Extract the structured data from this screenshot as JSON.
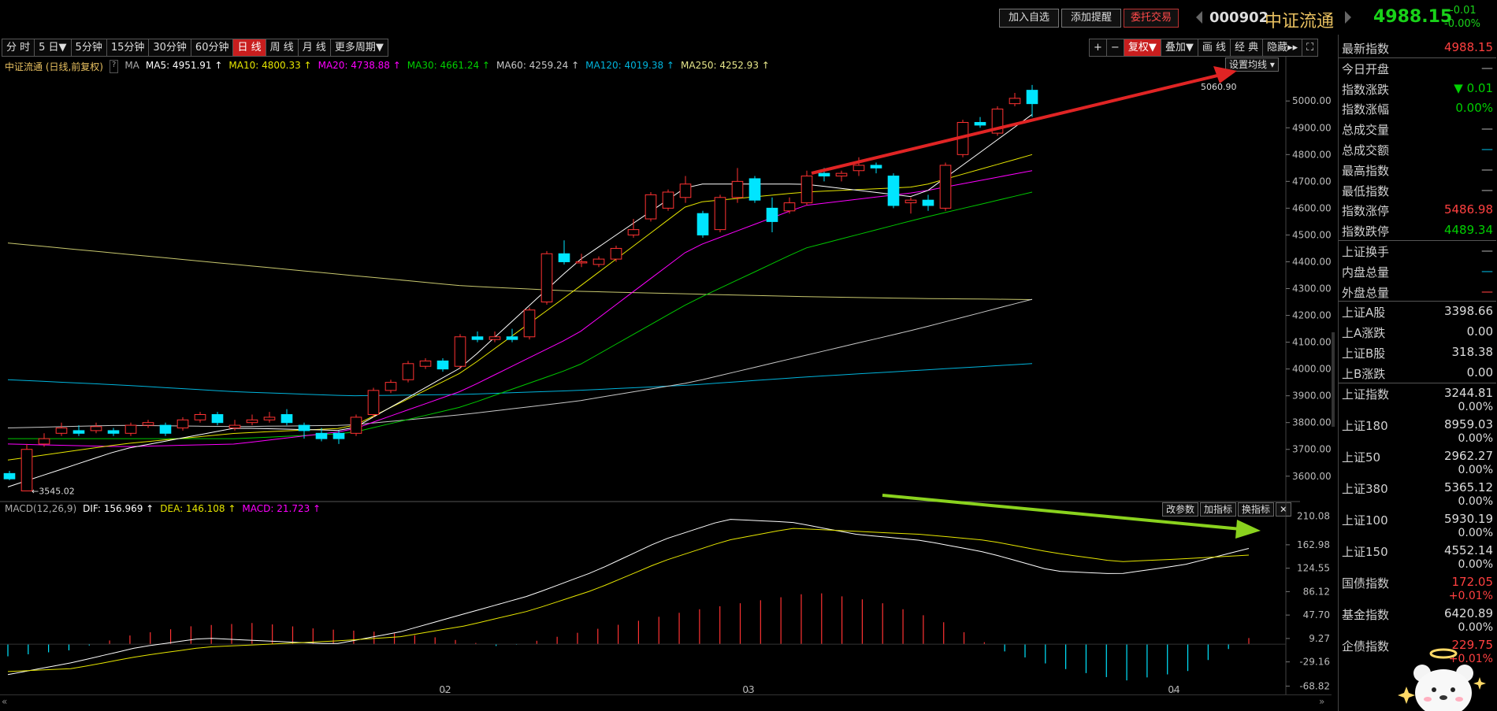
{
  "topbar": {
    "add_watch": "加入自选",
    "add_alert": "添加提醒",
    "entrust_trade": "委托交易",
    "code": "000902",
    "name": "中证流通",
    "price": "4988.15",
    "change": "-0.01",
    "change_pct": "-0.00%"
  },
  "periods": [
    "分 时",
    "5 日▼",
    "5分钟",
    "15分钟",
    "30分钟",
    "60分钟",
    "日 线",
    "周 线",
    "月 线",
    "更多周期▼"
  ],
  "active_period": "日 线",
  "tools": [
    "+",
    "−",
    "复权▼",
    "叠加▼",
    "画 线",
    "经 典",
    "隐藏▸▸",
    "⛶"
  ],
  "legend_main": {
    "title": "中证流通 (日线,前复权)",
    "ma_label": "MA",
    "ma5": "MA5: 4951.91 ↑",
    "ma10": "MA10: 4800.33 ↑",
    "ma20": "MA20: 4738.88 ↑",
    "ma30": "MA30: 4661.24 ↑",
    "ma60": "MA60: 4259.24 ↑",
    "ma120": "MA120: 4019.38 ↑",
    "ma250": "MA250: 4252.93 ↑"
  },
  "set_ma_button": "设置均线 ▾",
  "high_label": "5060.90",
  "low_label": "3545.02",
  "legend_macd": {
    "title": "MACD(12,26,9)",
    "dif": "DIF: 156.969 ↑",
    "dea": "DEA: 146.108 ↑",
    "macd": "MACD: 21.723 ↑"
  },
  "macd_buttons": [
    "改参数",
    "加指标",
    "换指标",
    "✕"
  ],
  "price_ticks": [
    "5000.00",
    "4900.00",
    "4800.00",
    "4700.00",
    "4600.00",
    "4500.00",
    "4400.00",
    "4300.00",
    "4200.00",
    "4100.00",
    "4000.00",
    "3900.00",
    "3800.00",
    "3700.00",
    "3600.00"
  ],
  "macd_ticks": [
    "210.08",
    "162.98",
    "124.55",
    "86.12",
    "47.70",
    "9.27",
    "-29.16",
    "-68.82"
  ],
  "x_ticks": [
    "02",
    "03",
    "04"
  ],
  "colors": {
    "up": "#ff3232",
    "down": "#00e5ff",
    "ma5": "#ffffff",
    "ma10": "#e6e600",
    "ma20": "#ff00ff",
    "ma30": "#00c800",
    "ma60": "#c8c8c8",
    "ma120": "#00b4dc",
    "ma250": "#c8c86e"
  },
  "right_panel": {
    "rows": [
      {
        "label": "最新指数",
        "value": "4988.15",
        "color": "#ff4040"
      },
      {
        "label": "今日开盘",
        "value": "—",
        "color": "#aaa"
      },
      {
        "label": "指数涨跌",
        "value": "▼ 0.01",
        "color": "#00d000"
      },
      {
        "label": "指数涨幅",
        "value": "0.00%",
        "color": "#00d000"
      },
      {
        "label": "总成交量",
        "value": "—",
        "color": "#aaa"
      },
      {
        "label": "总成交额",
        "value": "—",
        "color": "#00b4dc"
      },
      {
        "label": "最高指数",
        "value": "—",
        "color": "#aaa"
      },
      {
        "label": "最低指数",
        "value": "—",
        "color": "#aaa"
      },
      {
        "label": "指数涨停",
        "value": "5486.98",
        "color": "#ff4040"
      },
      {
        "label": "指数跌停",
        "value": "4489.34",
        "color": "#00d000"
      },
      {
        "label": "上证换手",
        "value": "—",
        "color": "#aaa"
      },
      {
        "label": "内盘总量",
        "value": "—",
        "color": "#00b4dc"
      },
      {
        "label": "外盘总量",
        "value": "—",
        "color": "#ff4040"
      },
      {
        "label": "上证A股",
        "value": "3398.66",
        "color": "#ddd"
      },
      {
        "label": "上A涨跌",
        "value": "0.00",
        "color": "#ddd"
      },
      {
        "label": "上证B股",
        "value": "318.38",
        "color": "#ddd"
      },
      {
        "label": "上B涨跌",
        "value": "0.00",
        "color": "#ddd"
      }
    ],
    "indices": [
      {
        "label": "上证指数",
        "value": "3244.81",
        "pct": "0.00%",
        "color": "#ddd"
      },
      {
        "label": "上证180",
        "value": "8959.03",
        "pct": "0.00%",
        "color": "#ddd"
      },
      {
        "label": "上证50",
        "value": "2962.27",
        "pct": "0.00%",
        "color": "#ddd"
      },
      {
        "label": "上证380",
        "value": "5365.12",
        "pct": "0.00%",
        "color": "#ddd"
      },
      {
        "label": "上证100",
        "value": "5930.19",
        "pct": "0.00%",
        "color": "#ddd"
      },
      {
        "label": "上证150",
        "value": "4552.14",
        "pct": "0.00%",
        "color": "#ddd"
      },
      {
        "label": "国债指数",
        "value": "172.05",
        "pct": "+0.01%",
        "color": "#ff4040"
      },
      {
        "label": "基金指数",
        "value": "6420.89",
        "pct": "0.00%",
        "color": "#ddd"
      },
      {
        "label": "企债指数",
        "value": "229.75",
        "pct": "+0.01%",
        "color": "#ff4040"
      }
    ]
  }
}
